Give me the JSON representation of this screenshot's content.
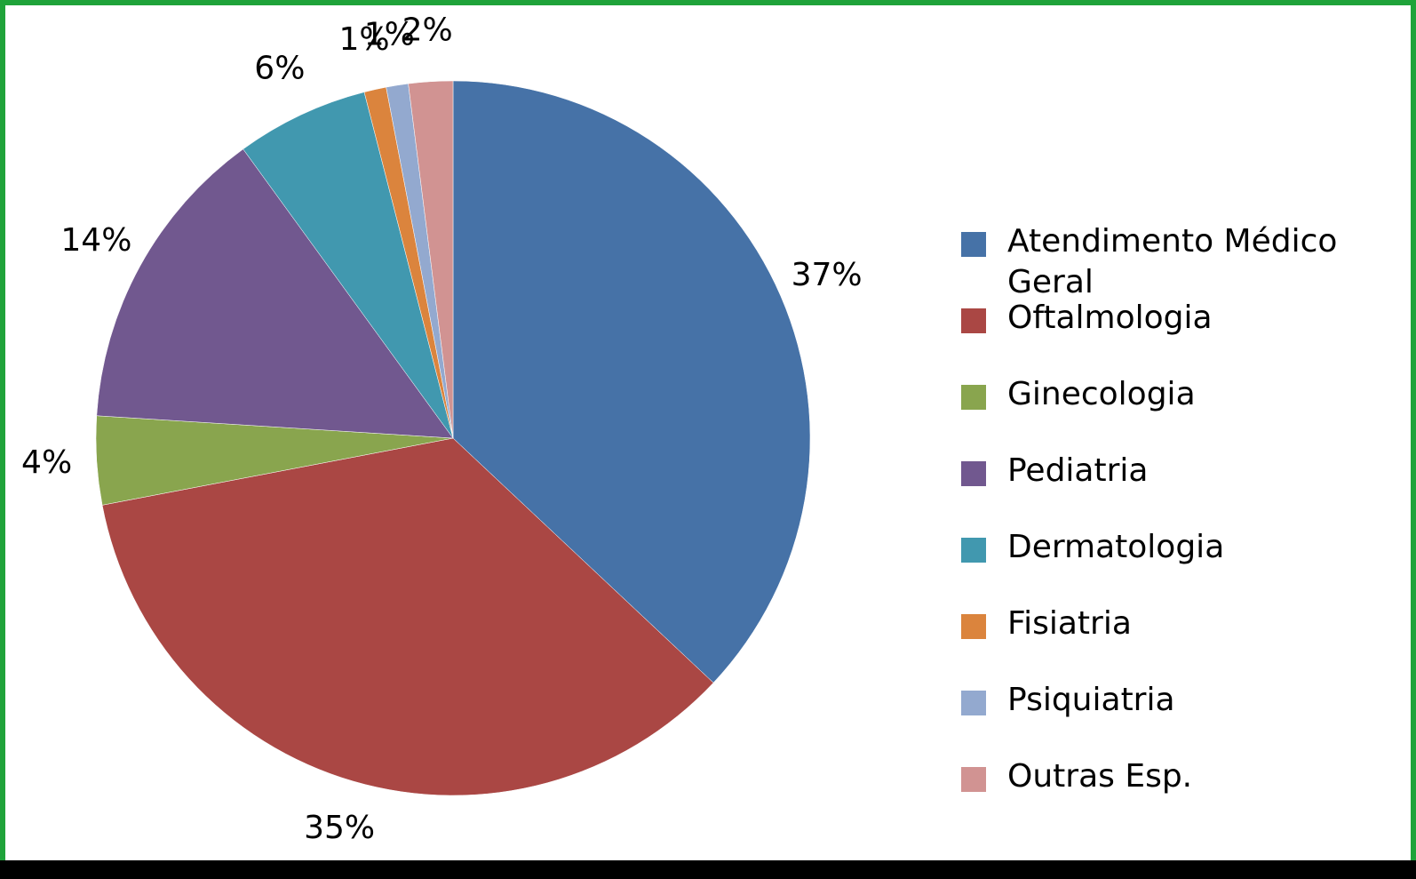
{
  "chart_data": {
    "type": "pie",
    "categories": [
      "Atendimento Médico Geral",
      "Oftalmologia",
      "Ginecologia",
      "Pediatria",
      "Dermatologia",
      "Fisiatria",
      "Psiquiatria",
      "Outras Esp."
    ],
    "values": [
      37,
      35,
      4,
      14,
      6,
      1,
      1,
      2
    ],
    "value_labels": [
      "37%",
      "35%",
      "4%",
      "14%",
      "6%",
      "1%",
      "1%",
      "2%"
    ],
    "colors": [
      "#4672a7",
      "#aa4744",
      "#89a54e",
      "#71588f",
      "#4198af",
      "#db843d",
      "#93a9cf",
      "#d19392"
    ],
    "legend": "right"
  }
}
